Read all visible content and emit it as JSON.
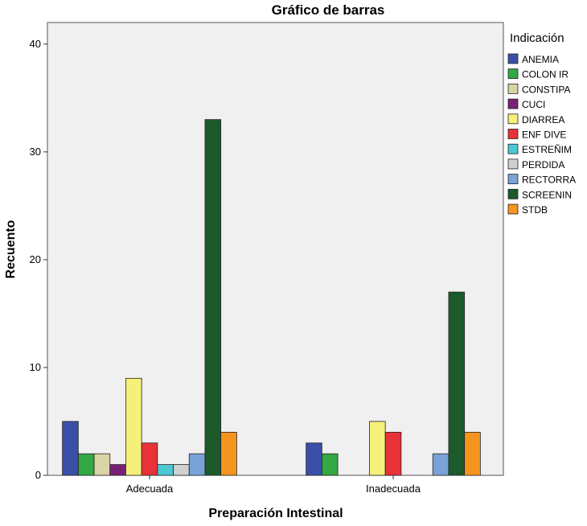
{
  "chart_data": {
    "type": "bar",
    "title": "Gráfico de barras",
    "xlabel": "Preparación Intestinal",
    "ylabel": "Recuento",
    "ylim": [
      0,
      42
    ],
    "yticks": [
      0,
      10,
      20,
      30,
      40
    ],
    "grid": false,
    "legend_title": "Indicación",
    "legend_position": "right",
    "categories": [
      "Adecuada",
      "Inadecuada"
    ],
    "series": [
      {
        "name": "ANEMIA",
        "color": "#3a4fa8",
        "values": [
          5,
          3
        ]
      },
      {
        "name": "COLON IR",
        "color": "#33a844",
        "values": [
          2,
          2
        ]
      },
      {
        "name": "CONSTIPA",
        "color": "#d9d4a6",
        "values": [
          2,
          0
        ]
      },
      {
        "name": "CUCI",
        "color": "#7a2077",
        "values": [
          1,
          0
        ]
      },
      {
        "name": "DIARREA",
        "color": "#f5f07a",
        "values": [
          9,
          5
        ]
      },
      {
        "name": "ENF DIVE",
        "color": "#e8323a",
        "values": [
          3,
          4
        ]
      },
      {
        "name": "ESTREÑIM",
        "color": "#4cc8d4",
        "values": [
          1,
          0
        ]
      },
      {
        "name": "PERDIDA",
        "color": "#d0d0d0",
        "values": [
          1,
          0
        ]
      },
      {
        "name": "RECTORRA",
        "color": "#79a3d6",
        "values": [
          2,
          2
        ]
      },
      {
        "name": "SCREENIN",
        "color": "#1c5a2c",
        "values": [
          33,
          17
        ]
      },
      {
        "name": "STDB",
        "color": "#f5941f",
        "values": [
          4,
          4
        ]
      }
    ]
  }
}
